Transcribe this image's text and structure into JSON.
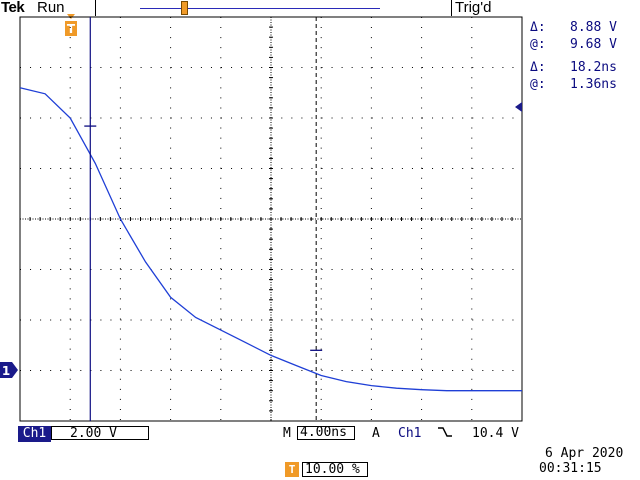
{
  "header": {
    "brand": "Tek",
    "status": "Run",
    "trigger_state": "Trig'd"
  },
  "markers": {
    "trigger_position_label": "T",
    "channel_ground_label": "1"
  },
  "readouts": {
    "voltage_delta_label": "Δ:",
    "voltage_delta": "8.88 V",
    "voltage_at_label": "@:",
    "voltage_at": "9.68 V",
    "time_delta_label": "Δ:",
    "time_delta": "18.2ns",
    "time_at_label": "@:",
    "time_at": "1.36ns"
  },
  "bottom": {
    "channel_label": "Ch1",
    "channel_scale": "2.00 V",
    "timebase_prefix": "M",
    "timebase": "4.00ns",
    "acquisition_mode": "A",
    "trigger_source": "Ch1",
    "trigger_slope": "falling",
    "trigger_level": "10.4 V",
    "hpos_icon": "T",
    "horizontal_position": "10.00 %",
    "date": "6 Apr  2020",
    "time": "00:31:15"
  },
  "colors": {
    "trace": "#1f3fd6",
    "graticule": "#000000",
    "cursor": "#0b0b80",
    "trigger_marker": "#f09a28"
  },
  "graticule": {
    "divisions_x": 10,
    "divisions_y": 8
  },
  "waveform": {
    "units_x": "divisions",
    "units_y": "divisions from top",
    "x": [
      0,
      0.5,
      1.0,
      1.5,
      2.0,
      2.5,
      3.0,
      3.5,
      4.0,
      4.5,
      5.0,
      5.5,
      6.0,
      6.5,
      7.0,
      7.5,
      8.0,
      8.5,
      9.0,
      9.5,
      10.0
    ],
    "y": [
      1.4,
      1.52,
      2.0,
      2.9,
      4.0,
      4.85,
      5.55,
      5.95,
      6.2,
      6.45,
      6.7,
      6.9,
      7.1,
      7.22,
      7.3,
      7.35,
      7.38,
      7.4,
      7.4,
      7.4,
      7.4
    ]
  },
  "cursors": {
    "vertical_1_div": 1.4,
    "vertical_2_div": 5.9,
    "markers": [
      {
        "x": 1.4,
        "y": 2.16
      },
      {
        "x": 5.9,
        "y": 6.6
      }
    ]
  }
}
